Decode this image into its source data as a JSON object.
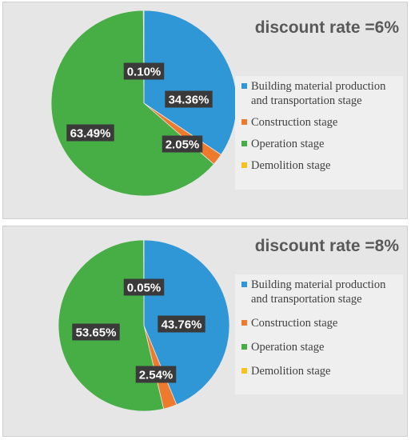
{
  "colors": {
    "building": "#2f97d6",
    "construction": "#ee7b2d",
    "operation": "#47ad45",
    "demolition": "#f8c21d",
    "label_bg": "#3a3a3a"
  },
  "chart_data": [
    {
      "type": "pie",
      "title": "discount rate =6%",
      "categories": [
        "Building material production and transportation stage",
        "Construction stage",
        "Operation stage",
        "Demolition stage"
      ],
      "legend_lines": [
        [
          "Building material production",
          "and transportation stage"
        ],
        [
          "Construction stage"
        ],
        [
          "Operation stage"
        ],
        [
          "Demolition stage"
        ]
      ],
      "values": [
        34.36,
        2.05,
        63.49,
        0.1
      ],
      "data_labels": [
        "34.36%",
        "2.05%",
        "63.49%",
        "0.10%"
      ],
      "legend_position": "right"
    },
    {
      "type": "pie",
      "title": "discount rate =8%",
      "categories": [
        "Building material production and transportation stage",
        "Construction stage",
        "Operation stage",
        "Demolition stage"
      ],
      "legend_lines": [
        [
          "Building material production",
          "and transportation stage"
        ],
        [
          "Construction stage"
        ],
        [
          "Operation stage"
        ],
        [
          "Demolition stage"
        ]
      ],
      "values": [
        43.76,
        2.54,
        53.65,
        0.05
      ],
      "data_labels": [
        "43.76%",
        "2.54%",
        "53.65%",
        "0.05%"
      ],
      "legend_position": "right"
    }
  ]
}
